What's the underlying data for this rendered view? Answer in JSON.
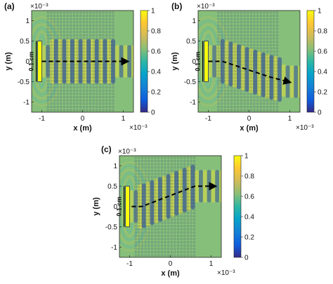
{
  "chart_data": [
    {
      "type": "heatmap",
      "panel_label": "(a)",
      "xlabel": "x (m)",
      "ylabel": "y (m)",
      "x_exponent": "×10⁻³",
      "y_exponent": "×10⁻³",
      "xlim": [
        -1.25,
        1.25
      ],
      "ylim": [
        -1.25,
        1.25
      ],
      "xticks": [
        -1,
        0,
        1
      ],
      "xtick_labels": [
        "-1",
        "0",
        "1"
      ],
      "yticks": [
        -1,
        -0.5,
        0,
        0.5,
        1
      ],
      "ytick_labels": [
        "-1",
        "-0.5",
        "0",
        "0.5",
        "1"
      ],
      "source_label": "0.1 cm",
      "source_x": -1.05,
      "source_y_range": [
        -0.5,
        0.5
      ],
      "lattice_x_range": [
        -0.85,
        0.75
      ],
      "beam_path": [
        [
          -1.0,
          0.0
        ],
        [
          0.55,
          0.0
        ],
        [
          0.85,
          0.0
        ],
        [
          1.05,
          0.0
        ]
      ],
      "colorbar": {
        "range": [
          0,
          1
        ],
        "ticks": [
          0,
          0.2,
          0.4,
          0.6,
          0.8,
          1
        ],
        "tick_labels": [
          "0",
          "0.2",
          "0.4",
          "0.6",
          "0.8",
          "1"
        ],
        "colormap": "parula"
      }
    },
    {
      "type": "heatmap",
      "panel_label": "(b)",
      "xlabel": "x (m)",
      "ylabel": "y (m)",
      "x_exponent": "×10⁻³",
      "y_exponent": "×10⁻³",
      "xlim": [
        -1.25,
        1.25
      ],
      "ylim": [
        -1.25,
        1.25
      ],
      "xticks": [
        -1,
        0,
        1
      ],
      "xtick_labels": [
        "-1",
        "0",
        "1"
      ],
      "yticks": [
        -1,
        -0.5,
        0,
        0.5,
        1
      ],
      "ytick_labels": [
        "-1",
        "-0.5",
        "0",
        "0.5",
        "1"
      ],
      "source_label": "0.1 cm",
      "source_x": -1.05,
      "source_y_range": [
        -0.5,
        0.5
      ],
      "lattice_x_range": [
        -0.75,
        0.75
      ],
      "beam_path": [
        [
          -1.0,
          0.0
        ],
        [
          -0.65,
          0.0
        ],
        [
          0.5,
          -0.38
        ],
        [
          0.95,
          -0.5
        ]
      ],
      "colorbar": {
        "range": [
          0,
          1
        ],
        "ticks": [
          0,
          0.2,
          0.4,
          0.6,
          0.8,
          1
        ],
        "tick_labels": [
          "0",
          "0.2",
          "0.4",
          "0.6",
          "0.8",
          "1"
        ],
        "colormap": "parula"
      }
    },
    {
      "type": "heatmap",
      "panel_label": "(c)",
      "xlabel": "x (m)",
      "ylabel": "y (m)",
      "x_exponent": "×10⁻³",
      "y_exponent": "×10⁻³",
      "xlim": [
        -1.25,
        1.25
      ],
      "ylim": [
        -1.25,
        1.25
      ],
      "xticks": [
        -1,
        0,
        1
      ],
      "xtick_labels": [
        "-1",
        "0",
        "1"
      ],
      "yticks": [
        -1,
        -0.5,
        0,
        0.5,
        1
      ],
      "ytick_labels": [
        "-1",
        "-0.5",
        "0",
        "0.5",
        "1"
      ],
      "source_label": "0.1 cm",
      "source_x": -1.05,
      "source_y_range": [
        -0.5,
        0.5
      ],
      "lattice_x_range": [
        -0.85,
        0.6
      ],
      "beam_path": [
        [
          -0.95,
          0.0
        ],
        [
          -0.7,
          0.0
        ],
        [
          0.6,
          0.5
        ],
        [
          1.05,
          0.5
        ]
      ],
      "colorbar": {
        "range": [
          0,
          1
        ],
        "ticks": [
          0,
          0.2,
          0.4,
          0.6,
          0.8,
          1
        ],
        "tick_labels": [
          "0",
          "0.2",
          "0.4",
          "0.6",
          "0.8",
          "1"
        ],
        "colormap": "parula"
      }
    }
  ]
}
